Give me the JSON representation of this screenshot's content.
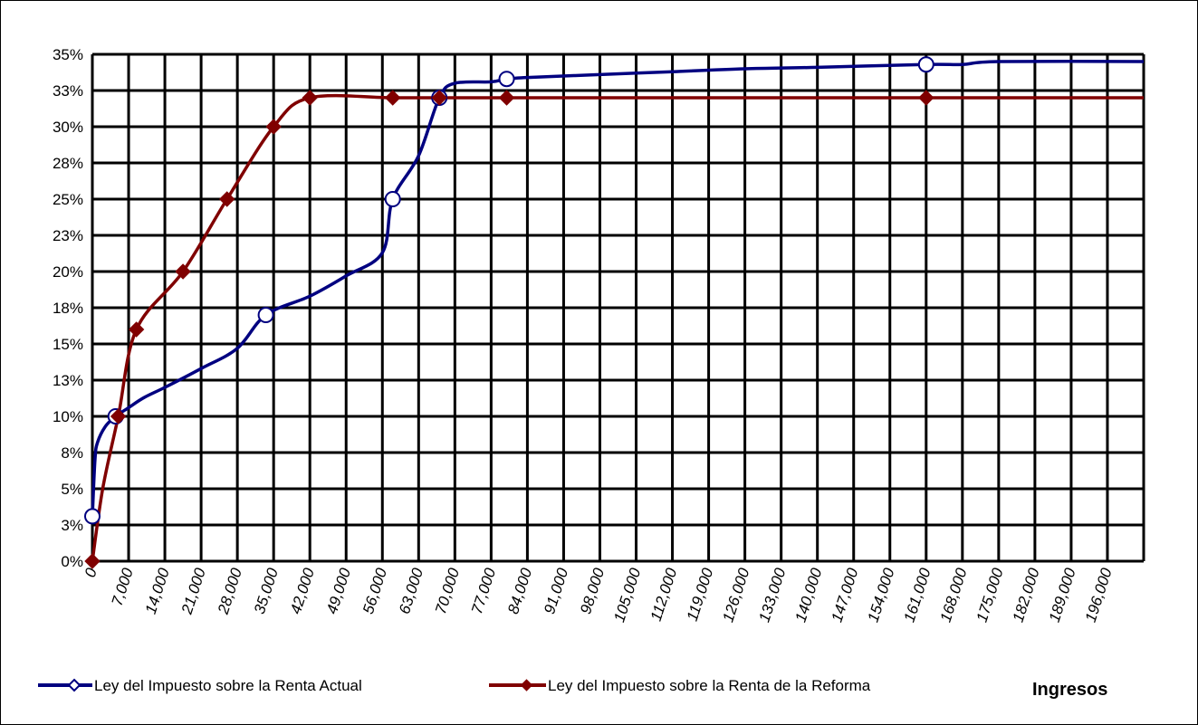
{
  "chart_data": {
    "type": "line",
    "xlabel": "Ingresos",
    "ylabel": "",
    "ylim": [
      0,
      0.35
    ],
    "xlim": [
      0,
      203000
    ],
    "grid": true,
    "legend_position": "bottom",
    "x_tick_labels": [
      "0",
      "7,000",
      "14,000",
      "21,000",
      "28,000",
      "35,000",
      "42,000",
      "49,000",
      "56,000",
      "63,000",
      "70,000",
      "77,000",
      "84,000",
      "91,000",
      "98,000",
      "105,000",
      "112,000",
      "119,000",
      "126,000",
      "133,000",
      "140,000",
      "147,000",
      "154,000",
      "161,000",
      "168,000",
      "175,000",
      "182,000",
      "189,000",
      "196,000"
    ],
    "y_tick_labels": [
      "0%",
      "3%",
      "5%",
      "8%",
      "10%",
      "13%",
      "15%",
      "18%",
      "20%",
      "23%",
      "25%",
      "28%",
      "30%",
      "33%",
      "35%"
    ],
    "series": [
      {
        "name": "Ley del Impuesto sobre la Renta Actual",
        "color": "#000080",
        "marker": "circle-open",
        "points": [
          [
            0,
            0.031
          ],
          [
            500,
            0.07
          ],
          [
            1000,
            0.082
          ],
          [
            2500,
            0.093
          ],
          [
            4500,
            0.1
          ],
          [
            7000,
            0.106
          ],
          [
            10000,
            0.113
          ],
          [
            14000,
            0.12
          ],
          [
            21000,
            0.133
          ],
          [
            28000,
            0.147
          ],
          [
            33500,
            0.17
          ],
          [
            42000,
            0.183
          ],
          [
            49000,
            0.197
          ],
          [
            56000,
            0.213
          ],
          [
            58000,
            0.25
          ],
          [
            63000,
            0.28
          ],
          [
            67000,
            0.32
          ],
          [
            70000,
            0.33
          ],
          [
            77000,
            0.331
          ],
          [
            80000,
            0.333
          ],
          [
            84000,
            0.334
          ],
          [
            98000,
            0.336
          ],
          [
            112000,
            0.338
          ],
          [
            126000,
            0.34
          ],
          [
            140000,
            0.341
          ],
          [
            161000,
            0.343
          ],
          [
            168000,
            0.343
          ],
          [
            175000,
            0.345
          ],
          [
            203000,
            0.345
          ]
        ],
        "marker_points": [
          [
            0,
            0.031
          ],
          [
            4500,
            0.1
          ],
          [
            33500,
            0.17
          ],
          [
            58000,
            0.25
          ],
          [
            67000,
            0.32
          ],
          [
            80000,
            0.333
          ],
          [
            161000,
            0.343
          ]
        ]
      },
      {
        "name": "Ley del Impuesto sobre la Renta de la Reforma",
        "color": "#800000",
        "marker": "diamond-filled",
        "points": [
          [
            0,
            0
          ],
          [
            2000,
            0.05
          ],
          [
            5000,
            0.1
          ],
          [
            8500,
            0.16
          ],
          [
            17500,
            0.2
          ],
          [
            26000,
            0.25
          ],
          [
            35000,
            0.3
          ],
          [
            42000,
            0.32
          ],
          [
            58000,
            0.32
          ],
          [
            67000,
            0.32
          ],
          [
            80000,
            0.32
          ],
          [
            161000,
            0.32
          ],
          [
            203000,
            0.32
          ]
        ],
        "marker_points": [
          [
            0,
            0
          ],
          [
            5000,
            0.1
          ],
          [
            8500,
            0.16
          ],
          [
            17500,
            0.2
          ],
          [
            26000,
            0.25
          ],
          [
            35000,
            0.3
          ],
          [
            42000,
            0.32
          ],
          [
            58000,
            0.32
          ],
          [
            67000,
            0.32
          ],
          [
            80000,
            0.32
          ],
          [
            161000,
            0.32
          ]
        ]
      }
    ]
  }
}
